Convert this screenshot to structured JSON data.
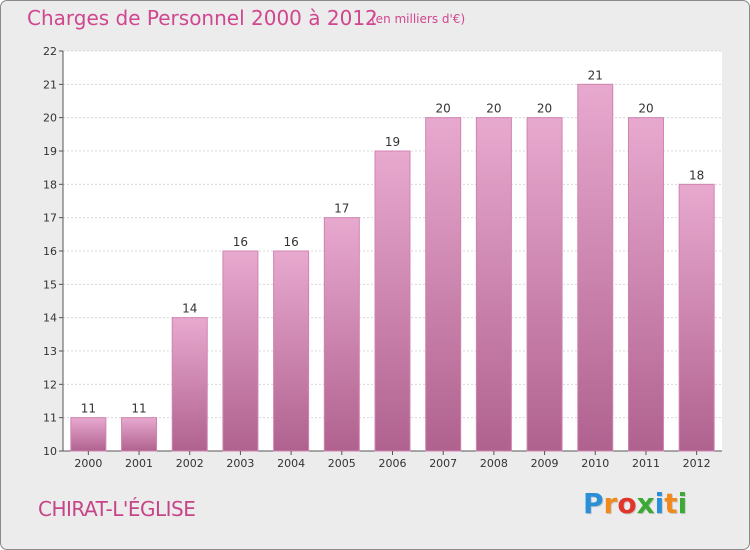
{
  "header": {
    "title": "Charges de Personnel 2000 à 2012",
    "subtitle": "(en milliers d'€)"
  },
  "footer": {
    "commune": "CHIRAT-L'ÉGLISE",
    "brand": {
      "text": "Proxiti",
      "letters": [
        {
          "char": "P",
          "color": "#2a8fd6"
        },
        {
          "char": "r",
          "color": "#f08a1c"
        },
        {
          "char": "o",
          "color": "#e2352a"
        },
        {
          "char": "x",
          "color": "#3aaa35"
        },
        {
          "char": "i",
          "color": "#2a8fd6"
        },
        {
          "char": "t",
          "color": "#f08a1c"
        },
        {
          "char": "i",
          "color": "#3aaa35"
        }
      ]
    }
  },
  "colors": {
    "bar_top": "#e8a9cf",
    "bar_bottom": "#b0628f",
    "bar_stroke": "#cf84b0",
    "title": "#d0468f",
    "plot_bg": "#ffffff",
    "grid": "#d8d8d8"
  },
  "chart_data": {
    "type": "bar",
    "title": "Charges de Personnel 2000 à 2012",
    "subtitle": "(en milliers d'€)",
    "categories": [
      "2000",
      "2001",
      "2002",
      "2003",
      "2004",
      "2005",
      "2006",
      "2007",
      "2008",
      "2009",
      "2010",
      "2011",
      "2012"
    ],
    "values": [
      11,
      11,
      14,
      16,
      16,
      17,
      19,
      20,
      20,
      20,
      21,
      20,
      18
    ],
    "value_labels": [
      "11",
      "11",
      "14",
      "16",
      "16",
      "17",
      "19",
      "20",
      "20",
      "20",
      "21",
      "20",
      "18"
    ],
    "yticks": [
      "10",
      "11",
      "12",
      "13",
      "14",
      "15",
      "16",
      "17",
      "18",
      "19",
      "20",
      "21",
      "22"
    ],
    "ylim": [
      10,
      22
    ],
    "grid": true,
    "xlabel": "",
    "ylabel": ""
  }
}
